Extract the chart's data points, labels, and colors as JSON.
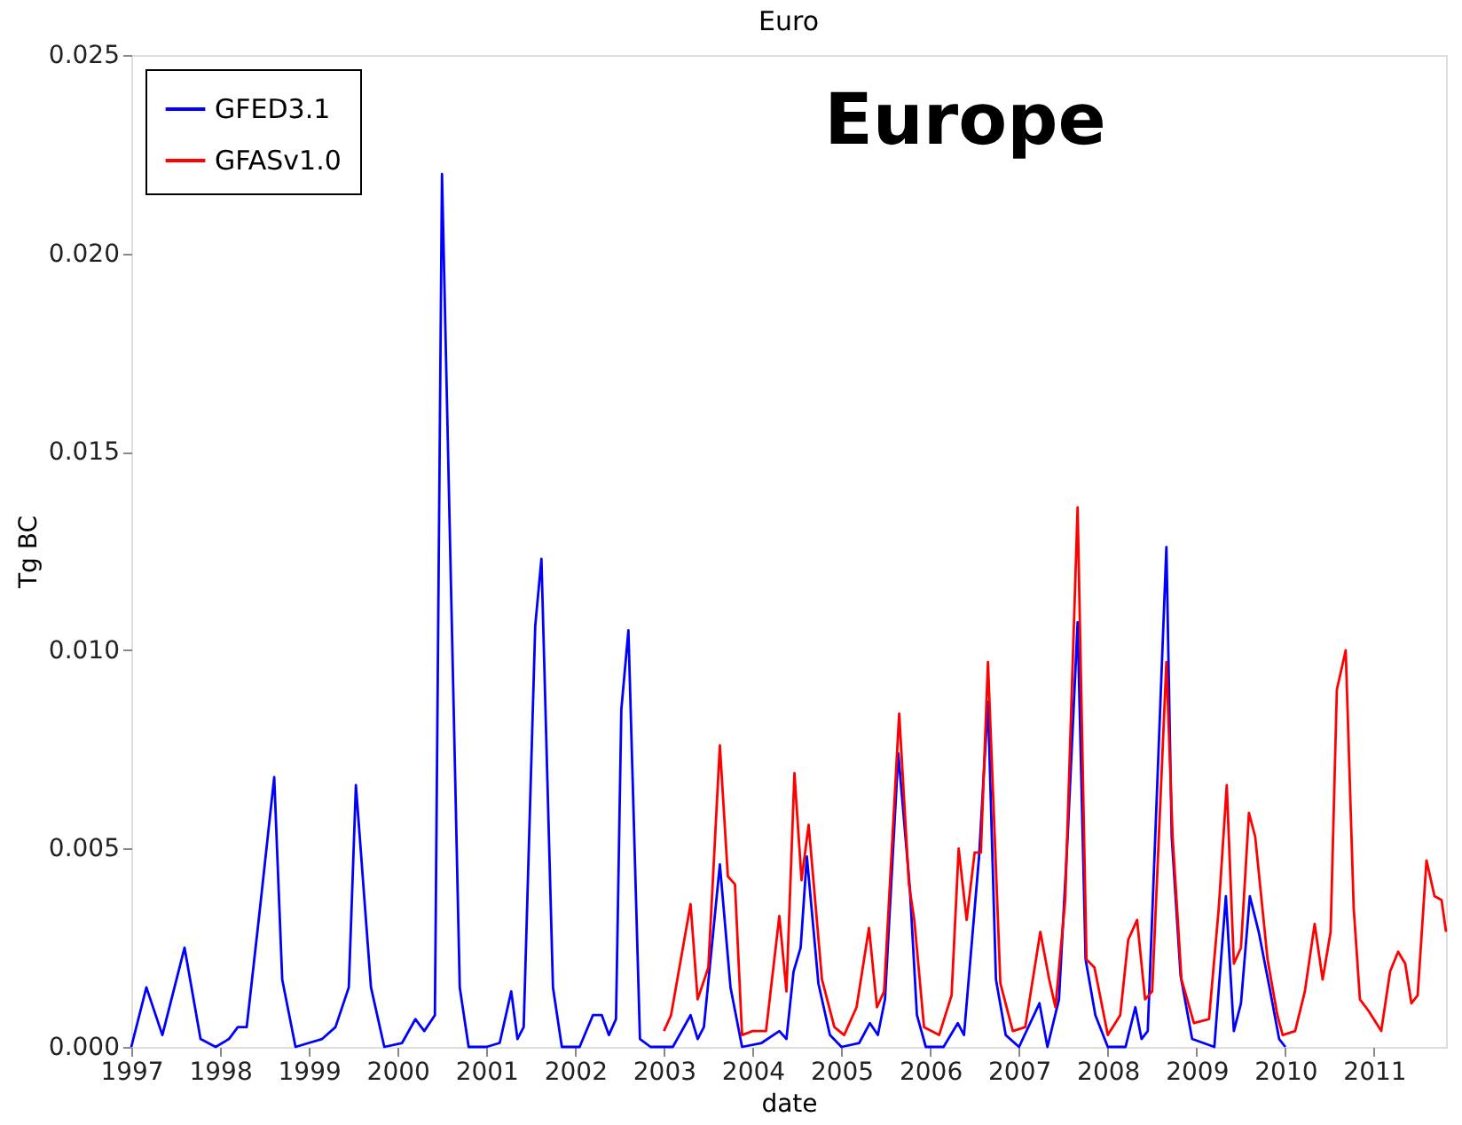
{
  "chart_data": {
    "type": "line",
    "title": "Euro",
    "xlabel": "date",
    "ylabel": "Tg BC",
    "annotations": [
      "Europe"
    ],
    "xlim": [
      1997,
      2011.81
    ],
    "xticks": [
      1997,
      1998,
      1999,
      2000,
      2001,
      2002,
      2003,
      2004,
      2005,
      2006,
      2007,
      2008,
      2009,
      2010,
      2011
    ],
    "ylim": [
      0,
      0.025
    ],
    "yticks": [
      {
        "value": 0,
        "label": "0.000"
      },
      {
        "value": 0.005,
        "label": "0.005"
      },
      {
        "value": 0.01,
        "label": "0.010"
      },
      {
        "value": 0.015,
        "label": "0.015"
      },
      {
        "value": 0.02,
        "label": "0.020"
      },
      {
        "value": 0.025,
        "label": "0.025"
      }
    ],
    "grid": false,
    "legend": "top left",
    "marker": "none",
    "line_style": "solid",
    "series": [
      {
        "name": "GFED3.1",
        "color": "#0000ff",
        "x": [
          1997.0,
          1997.17,
          1997.35,
          1997.6,
          1997.78,
          1997.95,
          1998.1,
          1998.2,
          1998.3,
          1998.45,
          1998.61,
          1998.7,
          1998.85,
          1999.0,
          1999.15,
          1999.3,
          1999.45,
          1999.53,
          1999.7,
          1999.85,
          2000.05,
          2000.2,
          2000.3,
          2000.42,
          2000.5,
          2000.7,
          2000.8,
          2001.0,
          2001.15,
          2001.28,
          2001.35,
          2001.42,
          2001.55,
          2001.62,
          2001.75,
          2001.85,
          2002.05,
          2002.2,
          2002.3,
          2002.38,
          2002.46,
          2002.52,
          2002.6,
          2002.73,
          2002.85,
          2003.1,
          2003.3,
          2003.38,
          2003.45,
          2003.63,
          2003.75,
          2003.88,
          2004.1,
          2004.3,
          2004.38,
          2004.46,
          2004.54,
          2004.61,
          2004.74,
          2004.87,
          2005.0,
          2005.2,
          2005.32,
          2005.41,
          2005.49,
          2005.64,
          2005.77,
          2005.85,
          2005.95,
          2006.15,
          2006.31,
          2006.38,
          2006.55,
          2006.65,
          2006.74,
          2006.85,
          2007.0,
          2007.23,
          2007.32,
          2007.45,
          2007.55,
          2007.66,
          2007.75,
          2007.86,
          2008.0,
          2008.2,
          2008.31,
          2008.38,
          2008.45,
          2008.66,
          2008.72,
          2008.82,
          2008.95,
          2009.2,
          2009.33,
          2009.42,
          2009.5,
          2009.6,
          2009.7,
          2009.83,
          2009.93,
          2010.0
        ],
        "values": [
          0,
          0.0015,
          0.0003,
          0.0025,
          0.0002,
          0,
          0.0002,
          0.0005,
          0.0005,
          0.0035,
          0.0068,
          0.0017,
          0,
          0.0001,
          0.0002,
          0.0005,
          0.0015,
          0.0066,
          0.0015,
          0,
          0.0001,
          0.0007,
          0.0004,
          0.0008,
          0.022,
          0.0015,
          0,
          0,
          0.0001,
          0.0014,
          0.0002,
          0.0005,
          0.0106,
          0.0123,
          0.0015,
          0,
          0,
          0.0008,
          0.0008,
          0.0003,
          0.0007,
          0.0085,
          0.0105,
          0.0002,
          0,
          0,
          0.0008,
          0.0002,
          0.0005,
          0.0046,
          0.0015,
          0,
          0.0001,
          0.0004,
          0.0002,
          0.0019,
          0.0025,
          0.0048,
          0.0016,
          0.0003,
          0,
          0.0001,
          0.0006,
          0.0003,
          0.0012,
          0.0074,
          0.004,
          0.0008,
          0,
          0,
          0.0006,
          0.0003,
          0.0048,
          0.0087,
          0.0017,
          0.0003,
          0,
          0.0011,
          0,
          0.0012,
          0.0054,
          0.0107,
          0.0022,
          0.0008,
          0,
          0,
          0.001,
          0.0002,
          0.0004,
          0.0126,
          0.0053,
          0.0018,
          0.0002,
          0,
          0.0038,
          0.0004,
          0.0011,
          0.0038,
          0.0029,
          0.0014,
          0.0002,
          0
        ]
      },
      {
        "name": "GFASv1.0",
        "color": "#ff0000",
        "x": [
          2003.0,
          2003.08,
          2003.3,
          2003.38,
          2003.5,
          2003.63,
          2003.72,
          2003.8,
          2003.88,
          2004.0,
          2004.15,
          2004.3,
          2004.38,
          2004.47,
          2004.55,
          2004.63,
          2004.78,
          2004.92,
          2005.03,
          2005.17,
          2005.31,
          2005.4,
          2005.48,
          2005.65,
          2005.76,
          2005.82,
          2005.93,
          2006.1,
          2006.24,
          2006.32,
          2006.41,
          2006.5,
          2006.57,
          2006.65,
          2006.79,
          2006.93,
          2007.07,
          2007.24,
          2007.34,
          2007.41,
          2007.52,
          2007.66,
          2007.76,
          2007.85,
          2008.0,
          2008.14,
          2008.23,
          2008.33,
          2008.42,
          2008.5,
          2008.66,
          2008.73,
          2008.83,
          2008.97,
          2009.14,
          2009.25,
          2009.34,
          2009.42,
          2009.5,
          2009.59,
          2009.66,
          2009.8,
          2009.91,
          2009.97,
          2010.11,
          2010.22,
          2010.33,
          2010.42,
          2010.51,
          2010.58,
          2010.68,
          2010.77,
          2010.84,
          2010.94,
          2011.08,
          2011.18,
          2011.27,
          2011.35,
          2011.42,
          2011.49,
          2011.59,
          2011.68,
          2011.76,
          2011.81
        ],
        "values": [
          0.0004,
          0.0008,
          0.0036,
          0.0012,
          0.002,
          0.0076,
          0.0043,
          0.0041,
          0.0003,
          0.0004,
          0.0004,
          0.0033,
          0.0014,
          0.0069,
          0.0042,
          0.0056,
          0.0017,
          0.0005,
          0.0003,
          0.001,
          0.003,
          0.001,
          0.0014,
          0.0084,
          0.0041,
          0.0032,
          0.0005,
          0.0003,
          0.0013,
          0.005,
          0.0032,
          0.0049,
          0.0049,
          0.0097,
          0.0016,
          0.0004,
          0.0005,
          0.0029,
          0.0017,
          0.001,
          0.0037,
          0.0136,
          0.0022,
          0.002,
          0.0003,
          0.0008,
          0.0027,
          0.0032,
          0.0012,
          0.0014,
          0.0097,
          0.0053,
          0.0017,
          0.0006,
          0.0007,
          0.0035,
          0.0066,
          0.0021,
          0.0025,
          0.0059,
          0.0053,
          0.0022,
          0.0008,
          0.0003,
          0.0004,
          0.0014,
          0.0031,
          0.0017,
          0.0029,
          0.009,
          0.01,
          0.0035,
          0.0012,
          0.0009,
          0.0004,
          0.0019,
          0.0024,
          0.0021,
          0.0011,
          0.0013,
          0.0047,
          0.0038,
          0.0037,
          0.0029
        ]
      }
    ]
  }
}
